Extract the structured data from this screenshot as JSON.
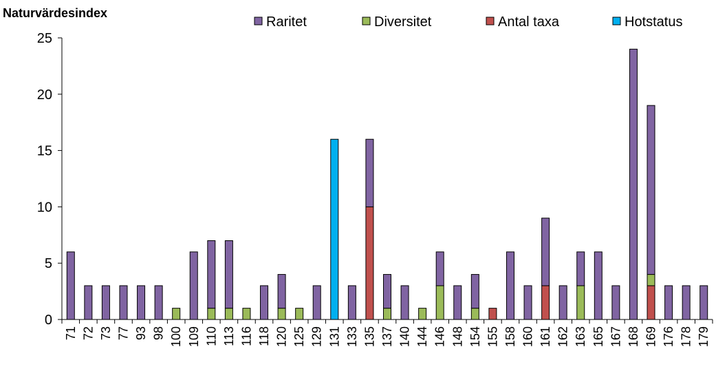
{
  "chart_data": {
    "type": "bar",
    "stacked": true,
    "title": "Naturvärdesindex",
    "ylim": [
      0,
      25
    ],
    "yticks": [
      0,
      5,
      10,
      15,
      20,
      25
    ],
    "grid": false,
    "legend_position": "top",
    "categories": [
      "71",
      "72",
      "73",
      "77",
      "93",
      "98",
      "100",
      "109",
      "110",
      "113",
      "116",
      "118",
      "120",
      "125",
      "129",
      "131",
      "133",
      "135",
      "137",
      "140",
      "144",
      "146",
      "148",
      "154",
      "155",
      "158",
      "160",
      "161",
      "162",
      "163",
      "165",
      "167",
      "168",
      "169",
      "176",
      "178",
      "179"
    ],
    "series": [
      {
        "name": "Hotstatus",
        "color": "#00b0f0",
        "values": [
          0,
          0,
          0,
          0,
          0,
          0,
          0,
          0,
          0,
          0,
          0,
          0,
          0,
          0,
          0,
          16,
          0,
          0,
          0,
          0,
          0,
          0,
          0,
          0,
          0,
          0,
          0,
          0,
          0,
          0,
          0,
          0,
          0,
          0,
          0,
          0,
          0
        ]
      },
      {
        "name": "Antal taxa",
        "color": "#c0504d",
        "values": [
          0,
          0,
          0,
          0,
          0,
          0,
          0,
          0,
          0,
          0,
          0,
          0,
          0,
          0,
          0,
          0,
          0,
          10,
          0,
          0,
          0,
          0,
          0,
          0,
          1,
          0,
          0,
          3,
          0,
          0,
          0,
          0,
          0,
          3,
          0,
          0,
          0
        ]
      },
      {
        "name": "Diversitet",
        "color": "#9bbb59",
        "values": [
          0,
          0,
          0,
          0,
          0,
          0,
          1,
          0,
          1,
          1,
          1,
          0,
          1,
          1,
          0,
          0,
          0,
          0,
          1,
          0,
          1,
          3,
          0,
          1,
          0,
          0,
          0,
          0,
          0,
          3,
          0,
          0,
          0,
          1,
          0,
          0,
          0
        ]
      },
      {
        "name": "Raritet",
        "color": "#8064a2",
        "values": [
          6,
          3,
          3,
          3,
          3,
          3,
          0,
          6,
          6,
          6,
          0,
          3,
          3,
          0,
          3,
          0,
          3,
          6,
          3,
          3,
          0,
          3,
          3,
          3,
          0,
          6,
          3,
          6,
          3,
          3,
          6,
          3,
          24,
          15,
          3,
          3,
          3
        ]
      }
    ],
    "legend_order": [
      "Raritet",
      "Diversitet",
      "Antal taxa",
      "Hotstatus"
    ]
  }
}
